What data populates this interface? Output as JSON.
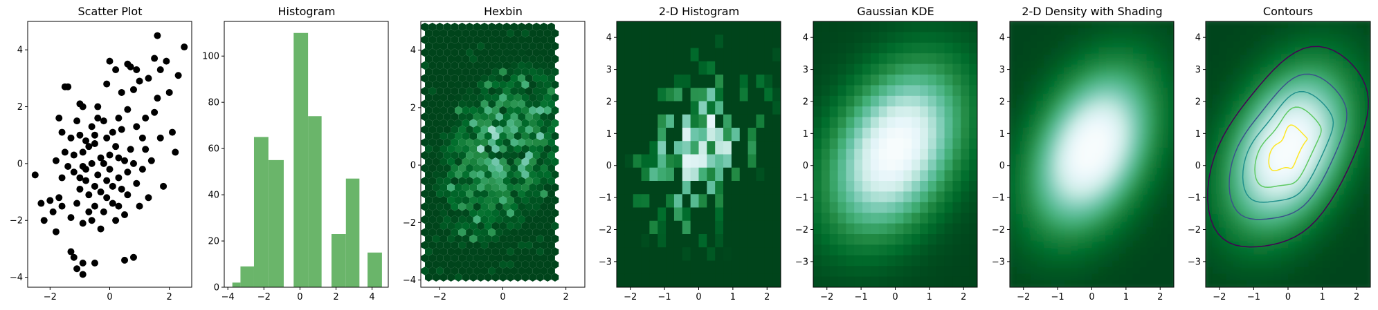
{
  "chart_data": [
    {
      "type": "scatter",
      "title": "Scatter Plot",
      "xlim": [
        -2.75,
        2.75
      ],
      "ylim": [
        -4.35,
        5.0
      ],
      "xticks": [
        -2,
        0,
        2
      ],
      "yticks": [
        -4,
        -2,
        0,
        2,
        4
      ],
      "color": "#000000",
      "points": [
        [
          -2.5,
          -0.4
        ],
        [
          -2.3,
          -1.4
        ],
        [
          -2.2,
          -2.0
        ],
        [
          -2.0,
          -1.3
        ],
        [
          -1.9,
          -1.7
        ],
        [
          -1.8,
          -2.4
        ],
        [
          -1.7,
          -1.2
        ],
        [
          -1.6,
          -0.5
        ],
        [
          -1.5,
          0.4
        ],
        [
          -1.6,
          1.1
        ],
        [
          -1.7,
          1.6
        ],
        [
          -1.4,
          2.7
        ],
        [
          -1.5,
          2.7
        ],
        [
          -1.3,
          0.9
        ],
        [
          -1.2,
          -0.3
        ],
        [
          -1.3,
          -1.9
        ],
        [
          -1.1,
          -1.4
        ],
        [
          -1.0,
          -0.9
        ],
        [
          -1.3,
          -3.1
        ],
        [
          -1.2,
          -3.3
        ],
        [
          -1.1,
          -3.7
        ],
        [
          -0.9,
          -3.5
        ],
        [
          -0.9,
          2.0
        ],
        [
          -1.0,
          2.1
        ],
        [
          -1.1,
          1.5
        ],
        [
          -1.0,
          1.0
        ],
        [
          -0.9,
          0.4
        ],
        [
          -0.8,
          -0.2
        ],
        [
          -0.8,
          -0.6
        ],
        [
          -0.7,
          -1.1
        ],
        [
          -0.7,
          -1.7
        ],
        [
          -0.9,
          -2.1
        ],
        [
          -0.6,
          -2.0
        ],
        [
          -0.5,
          -1.5
        ],
        [
          -0.5,
          -0.8
        ],
        [
          -0.6,
          0.0
        ],
        [
          -0.5,
          0.7
        ],
        [
          -0.6,
          1.3
        ],
        [
          -0.4,
          2.0
        ],
        [
          -0.5,
          1.0
        ],
        [
          -0.3,
          0.2
        ],
        [
          -0.4,
          -0.4
        ],
        [
          -0.3,
          -1.0
        ],
        [
          -0.2,
          -1.7
        ],
        [
          -0.3,
          -2.3
        ],
        [
          -0.1,
          -1.2
        ],
        [
          -0.1,
          -0.6
        ],
        [
          0.0,
          0.3
        ],
        [
          -0.1,
          0.9
        ],
        [
          -0.2,
          1.5
        ],
        [
          -0.1,
          2.8
        ],
        [
          0.0,
          3.6
        ],
        [
          0.1,
          1.1
        ],
        [
          0.0,
          -0.2
        ],
        [
          0.1,
          -1.4
        ],
        [
          0.2,
          -2.0
        ],
        [
          0.3,
          -0.5
        ],
        [
          0.2,
          0.6
        ],
        [
          0.3,
          1.6
        ],
        [
          0.2,
          3.3
        ],
        [
          0.4,
          2.5
        ],
        [
          0.5,
          0.1
        ],
        [
          0.4,
          -0.9
        ],
        [
          0.5,
          -1.8
        ],
        [
          0.6,
          -1.1
        ],
        [
          0.7,
          0.5
        ],
        [
          0.6,
          1.9
        ],
        [
          0.7,
          3.4
        ],
        [
          0.6,
          3.5
        ],
        [
          0.8,
          2.6
        ],
        [
          0.9,
          1.3
        ],
        [
          0.8,
          0.0
        ],
        [
          0.9,
          -0.7
        ],
        [
          1.0,
          -1.5
        ],
        [
          1.1,
          0.9
        ],
        [
          1.0,
          2.9
        ],
        [
          1.2,
          1.6
        ],
        [
          1.1,
          -0.2
        ],
        [
          1.3,
          -1.2
        ],
        [
          1.4,
          0.1
        ],
        [
          1.5,
          1.8
        ],
        [
          1.5,
          3.7
        ],
        [
          1.6,
          4.5
        ],
        [
          1.7,
          3.3
        ],
        [
          1.6,
          2.3
        ],
        [
          1.7,
          0.9
        ],
        [
          1.8,
          -0.8
        ],
        [
          1.9,
          3.6
        ],
        [
          2.0,
          2.5
        ],
        [
          2.1,
          1.1
        ],
        [
          2.2,
          0.4
        ],
        [
          2.3,
          3.1
        ],
        [
          2.5,
          4.1
        ],
        [
          -1.8,
          0.1
        ],
        [
          -1.4,
          -0.1
        ],
        [
          -1.2,
          0.3
        ],
        [
          -0.8,
          0.8
        ],
        [
          -0.2,
          0.0
        ],
        [
          0.3,
          0.2
        ],
        [
          0.6,
          -0.3
        ],
        [
          1.2,
          0.5
        ],
        [
          -0.9,
          -0.1
        ],
        [
          0.4,
          1.2
        ],
        [
          -0.7,
          0.6
        ],
        [
          0.1,
          -0.8
        ],
        [
          -0.4,
          1.6
        ],
        [
          0.9,
          3.3
        ],
        [
          0.5,
          -3.4
        ],
        [
          0.8,
          -3.3
        ],
        [
          -0.5,
          -3.5
        ],
        [
          -0.9,
          -3.9
        ],
        [
          -1.6,
          -1.5
        ],
        [
          -1.0,
          -0.5
        ],
        [
          0.3,
          -1.5
        ],
        [
          1.3,
          3.0
        ]
      ]
    },
    {
      "type": "bar",
      "title": "Histogram",
      "xlim": [
        -4.2,
        4.9
      ],
      "ylim": [
        0,
        115
      ],
      "xticks": [
        -4,
        -2,
        0,
        2,
        4
      ],
      "yticks": [
        0,
        20,
        40,
        60,
        80,
        100
      ],
      "color": "#6ab56a",
      "bins": [
        {
          "x0": -3.75,
          "x1": -3.3,
          "value": 2
        },
        {
          "x0": -3.3,
          "x1": -2.55,
          "value": 9
        },
        {
          "x0": -2.55,
          "x1": -1.75,
          "value": 65
        },
        {
          "x0": -1.75,
          "x1": -0.9,
          "value": 55
        },
        {
          "x0": -0.35,
          "x1": 0.45,
          "value": 110
        },
        {
          "x0": 0.45,
          "x1": 1.2,
          "value": 74
        },
        {
          "x0": 1.75,
          "x1": 2.55,
          "value": 23
        },
        {
          "x0": 2.55,
          "x1": 3.3,
          "value": 47
        },
        {
          "x0": 3.75,
          "x1": 4.55,
          "value": 15
        }
      ]
    },
    {
      "type": "hexbin",
      "title": "Hexbin",
      "xlim": [
        -2.6,
        2.6
      ],
      "ylim": [
        -4.25,
        5.0
      ],
      "xticks": [
        -2,
        0,
        2
      ],
      "yticks": [
        -4,
        -2,
        0,
        2,
        4
      ],
      "colormap": "BuGn_r"
    },
    {
      "type": "heatmap",
      "title": "2-D Histogram",
      "xlim": [
        -2.4,
        2.4
      ],
      "ylim": [
        -3.8,
        4.5
      ],
      "xticks": [
        -2,
        -1,
        0,
        1,
        2
      ],
      "yticks": [
        -3,
        -2,
        -1,
        0,
        1,
        2,
        3,
        4
      ],
      "colormap": "BuGn_r"
    },
    {
      "type": "heatmap",
      "title": "Gaussian KDE",
      "xlim": [
        -2.4,
        2.4
      ],
      "ylim": [
        -3.8,
        4.5
      ],
      "xticks": [
        -2,
        -1,
        0,
        1,
        2
      ],
      "yticks": [
        -3,
        -2,
        -1,
        0,
        1,
        2,
        3,
        4
      ],
      "colormap": "BuGn_r"
    },
    {
      "type": "heatmap",
      "title": "2-D Density with Shading",
      "xlim": [
        -2.4,
        2.4
      ],
      "ylim": [
        -3.8,
        4.5
      ],
      "xticks": [
        -2,
        -1,
        0,
        1,
        2
      ],
      "yticks": [
        -3,
        -2,
        -1,
        0,
        1,
        2,
        3,
        4
      ],
      "colormap": "BuGn_r"
    },
    {
      "type": "heatmap",
      "title": "Contours",
      "xlim": [
        -2.4,
        2.4
      ],
      "ylim": [
        -3.8,
        4.5
      ],
      "xticks": [
        -2,
        -1,
        0,
        1,
        2
      ],
      "yticks": [
        -3,
        -2,
        -1,
        0,
        1,
        2,
        3,
        4
      ],
      "colormap": "BuGn_r",
      "contour_colors": [
        "#440154",
        "#3b528b",
        "#21918c",
        "#5ec962",
        "#fde725"
      ]
    }
  ]
}
